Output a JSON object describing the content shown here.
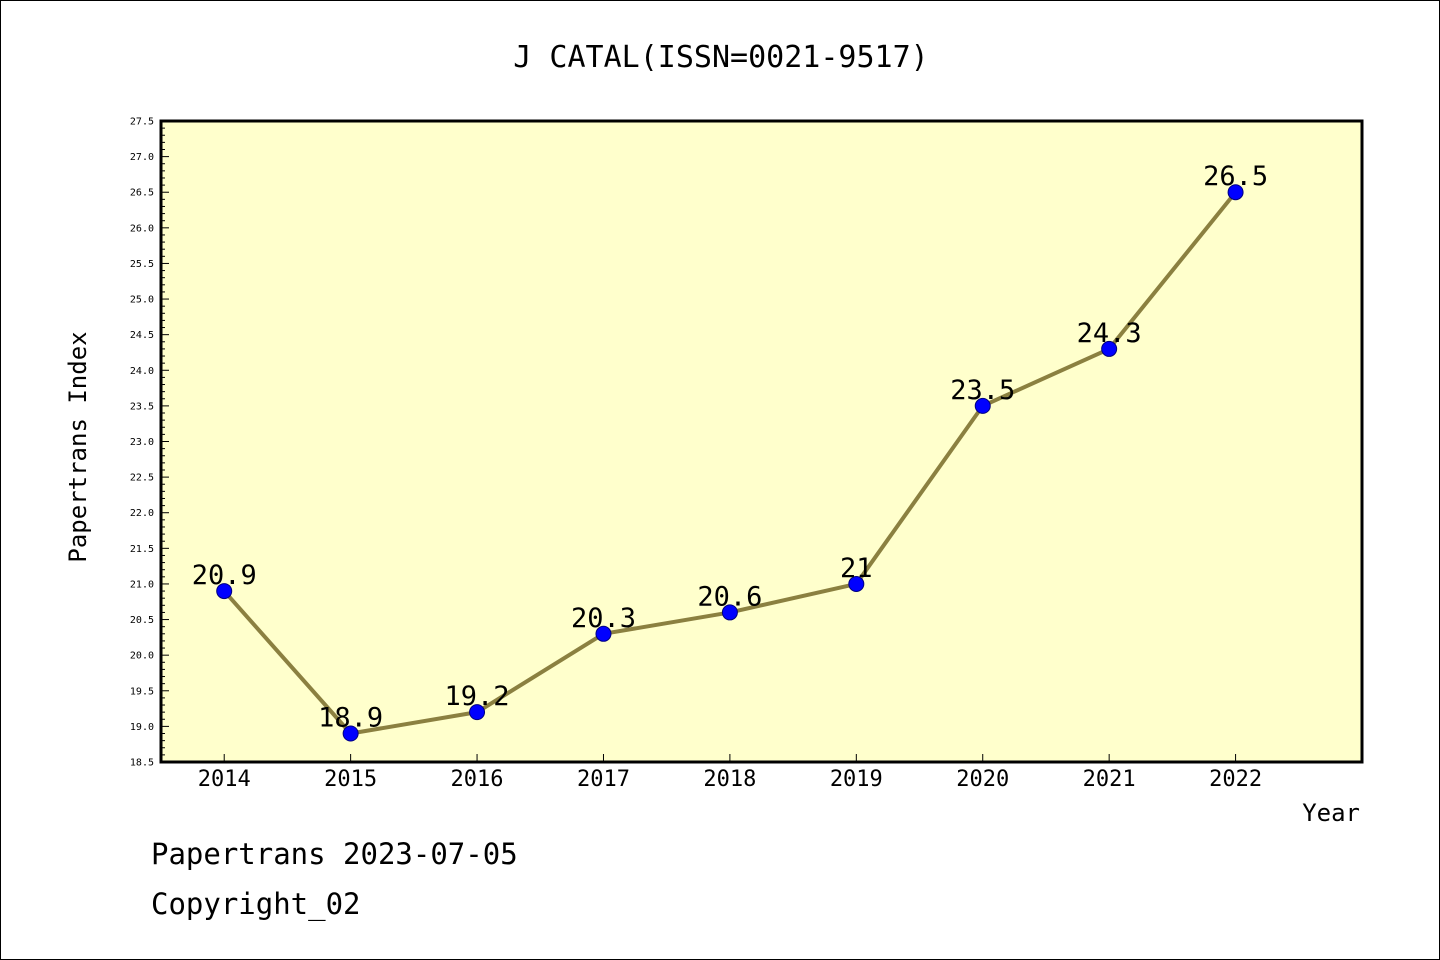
{
  "chart_data": {
    "type": "line",
    "title": "J CATAL(ISSN=0021-9517)",
    "xlabel": "Year",
    "ylabel": "Papertrans Index",
    "categories": [
      "2014",
      "2015",
      "2016",
      "2017",
      "2018",
      "2019",
      "2020",
      "2021",
      "2022"
    ],
    "values": [
      20.9,
      18.9,
      19.2,
      20.3,
      20.6,
      21,
      23.5,
      24.3,
      26.5
    ],
    "data_labels": [
      "20.9",
      "18.9",
      "19.2",
      "20.3",
      "20.6",
      "21",
      "23.5",
      "24.3",
      "26.5"
    ],
    "ylim": [
      18.5,
      27.5
    ],
    "yticks": [
      "18.5",
      "19.0",
      "19.5",
      "20.0",
      "20.5",
      "21.0",
      "21.5",
      "22.0",
      "22.5",
      "23.0",
      "23.5",
      "24.0",
      "24.5",
      "25.0",
      "25.5",
      "26.0",
      "26.5",
      "27.0",
      "27.5"
    ],
    "grid": false,
    "legend": "none",
    "colors": {
      "plot_background": "#ffffcc",
      "line": "#8b8040",
      "marker": "#0000ff",
      "marker_edge": "#000080"
    }
  },
  "footer": {
    "date_line": "Papertrans 2023-07-05",
    "copyright": "Copyright_02"
  }
}
